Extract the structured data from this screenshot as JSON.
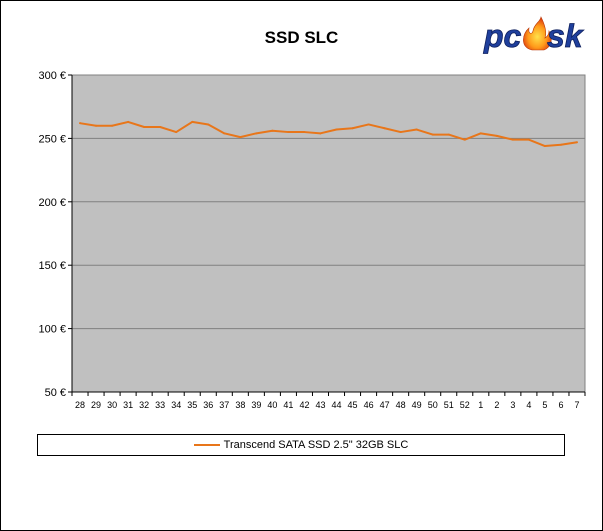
{
  "chart_data": {
    "type": "line",
    "title": "SSD SLC",
    "xlabel": "",
    "ylabel": "",
    "categories": [
      "28",
      "29",
      "30",
      "31",
      "32",
      "33",
      "34",
      "35",
      "36",
      "37",
      "38",
      "39",
      "40",
      "41",
      "42",
      "43",
      "44",
      "45",
      "46",
      "47",
      "48",
      "49",
      "50",
      "51",
      "52",
      "1",
      "2",
      "3",
      "4",
      "5",
      "6",
      "7"
    ],
    "series": [
      {
        "name": "Transcend SATA SSD 2.5\" 32GB SLC",
        "color": "#e8761a",
        "values": [
          262,
          260,
          260,
          263,
          259,
          259,
          255,
          263,
          261,
          254,
          251,
          254,
          256,
          255,
          255,
          254,
          257,
          258,
          261,
          258,
          255,
          257,
          253,
          253,
          249,
          254,
          252,
          249,
          249,
          244,
          245,
          247
        ]
      }
    ],
    "ylim": [
      50,
      300
    ],
    "yticks": [
      50,
      100,
      150,
      200,
      250,
      300
    ],
    "ytick_suffix": " €",
    "grid": true,
    "legend_position": "bottom",
    "plot_background": "#c0c0c0"
  },
  "logo": {
    "text": "pcesk"
  }
}
